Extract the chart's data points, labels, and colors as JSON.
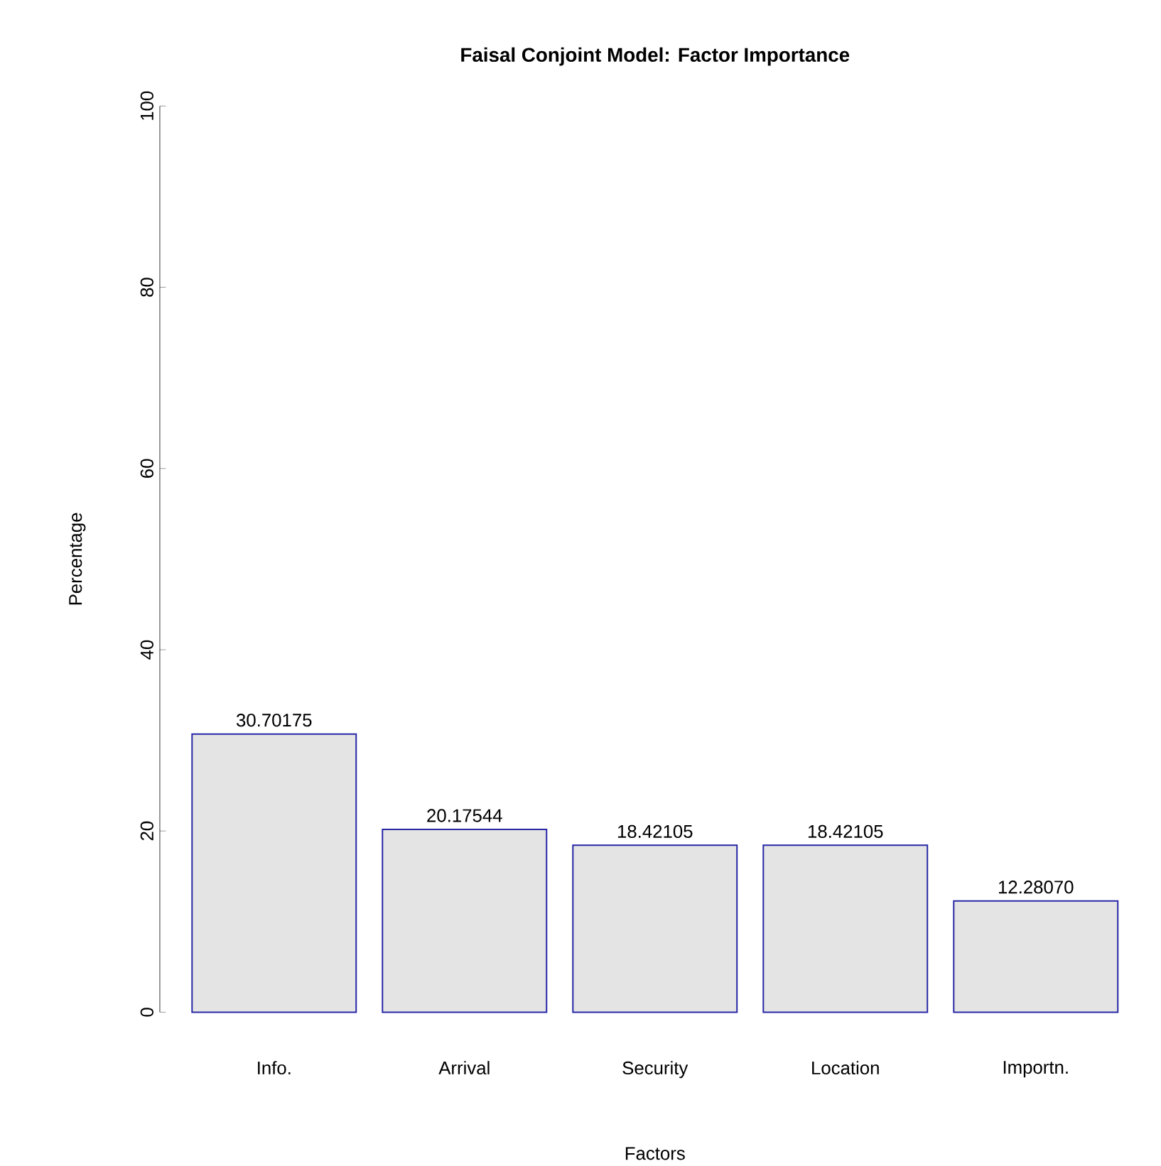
{
  "chart_data": {
    "type": "bar",
    "title": "Faisal Conjoint Model: Factor Importance",
    "xlabel": "Factors",
    "ylabel": "Percentage",
    "categories": [
      "Info.",
      "Arrival",
      "Security",
      "Location",
      "Importn."
    ],
    "values": [
      30.70175,
      20.17544,
      18.42105,
      18.42105,
      12.2807
    ],
    "value_labels": [
      "30.70175",
      "20.17544",
      "18.42105",
      "18.42105",
      "12.28070"
    ],
    "color": "#e4e4e4",
    "ylim": [
      0,
      100
    ],
    "yticks": [
      0,
      20,
      40,
      60,
      80,
      100
    ]
  }
}
